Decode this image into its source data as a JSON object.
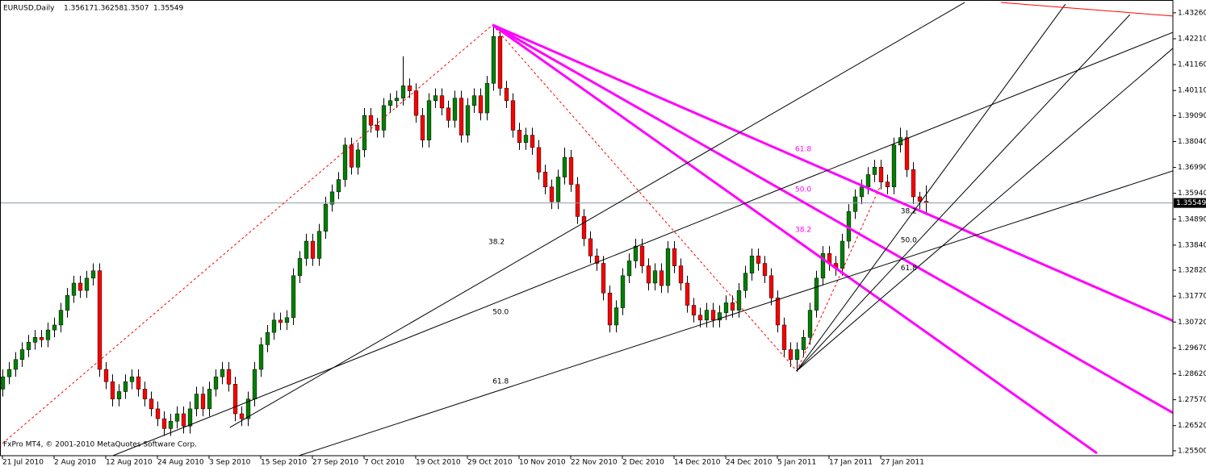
{
  "chart_data": {
    "type": "candlestick",
    "title": "EURUSD,Daily",
    "footer": "FxPro MT4, © 2001-2010 MetaQuotes Software Corp.",
    "up_color": "#008000",
    "down_color": "#ff0000",
    "wick_color": "#000000",
    "price_line_color": "#8c9aa6",
    "xlim": [
      -0.375,
      181.25
    ],
    "ylim": [
      1.253,
      1.4378
    ],
    "xticks": [
      {
        "value": 0,
        "label": "21 Jul 2010"
      },
      {
        "value": 8,
        "label": "2 Aug 2010"
      },
      {
        "value": 16,
        "label": "12 Aug 2010"
      },
      {
        "value": 24,
        "label": "24 Aug 2010"
      },
      {
        "value": 32,
        "label": "3 Sep 2010"
      },
      {
        "value": 40,
        "label": "15 Sep 2010"
      },
      {
        "value": 48,
        "label": "27 Sep 2010"
      },
      {
        "value": 56,
        "label": "7 Oct 2010"
      },
      {
        "value": 64,
        "label": "19 Oct 2010"
      },
      {
        "value": 72,
        "label": "29 Oct 2010"
      },
      {
        "value": 80,
        "label": "10 Nov 2010"
      },
      {
        "value": 88,
        "label": "22 Nov 2010"
      },
      {
        "value": 96,
        "label": "2 Dec 2010"
      },
      {
        "value": 104,
        "label": "14 Dec 2010"
      },
      {
        "value": 112,
        "label": "24 Dec 2010"
      },
      {
        "value": 120,
        "label": "5 Jan 2011"
      },
      {
        "value": 128,
        "label": "17 Jan 2011"
      },
      {
        "value": 136,
        "label": "27 Jan 2011"
      }
    ],
    "yticks": [
      {
        "value": 1.4326,
        "label": "1.43260"
      },
      {
        "value": 1.4221,
        "label": "1.42210"
      },
      {
        "value": 1.4116,
        "label": "1.41160"
      },
      {
        "value": 1.4011,
        "label": "1.40110"
      },
      {
        "value": 1.3909,
        "label": "1.39090"
      },
      {
        "value": 1.3804,
        "label": "1.38040"
      },
      {
        "value": 1.3699,
        "label": "1.36990"
      },
      {
        "value": 1.3594,
        "label": "1.35940"
      },
      {
        "value": 1.3489,
        "label": "1.34890"
      },
      {
        "value": 1.3384,
        "label": "1.33840"
      },
      {
        "value": 1.3282,
        "label": "1.32820"
      },
      {
        "value": 1.3177,
        "label": "1.31770"
      },
      {
        "value": 1.3072,
        "label": "1.30720"
      },
      {
        "value": 1.2967,
        "label": "1.29670"
      },
      {
        "value": 1.2862,
        "label": "1.28620"
      },
      {
        "value": 1.2757,
        "label": "1.27570"
      },
      {
        "value": 1.2652,
        "label": "1.26520"
      },
      {
        "value": 1.255,
        "label": "1.25500"
      }
    ],
    "ohlc": [
      [
        1.28,
        1.288,
        1.277,
        1.285
      ],
      [
        1.285,
        1.291,
        1.282,
        1.288
      ],
      [
        1.288,
        1.295,
        1.285,
        1.292
      ],
      [
        1.292,
        1.299,
        1.289,
        1.296
      ],
      [
        1.296,
        1.302,
        1.293,
        1.299
      ],
      [
        1.299,
        1.304,
        1.296,
        1.301
      ],
      [
        1.301,
        1.304,
        1.297,
        1.3
      ],
      [
        1.3,
        1.307,
        1.297,
        1.304
      ],
      [
        1.304,
        1.309,
        1.301,
        1.306
      ],
      [
        1.306,
        1.315,
        1.303,
        1.312
      ],
      [
        1.312,
        1.321,
        1.309,
        1.318
      ],
      [
        1.318,
        1.326,
        1.315,
        1.323
      ],
      [
        1.323,
        1.326,
        1.317,
        1.32
      ],
      [
        1.32,
        1.328,
        1.317,
        1.325
      ],
      [
        1.325,
        1.331,
        1.322,
        1.328
      ],
      [
        1.328,
        1.331,
        1.285,
        1.288
      ],
      [
        1.288,
        1.291,
        1.28,
        1.283
      ],
      [
        1.283,
        1.286,
        1.273,
        1.276
      ],
      [
        1.276,
        1.282,
        1.273,
        1.279
      ],
      [
        1.279,
        1.286,
        1.276,
        1.283
      ],
      [
        1.283,
        1.288,
        1.28,
        1.285
      ],
      [
        1.285,
        1.288,
        1.277,
        1.28
      ],
      [
        1.28,
        1.283,
        1.273,
        1.276
      ],
      [
        1.276,
        1.279,
        1.269,
        1.272
      ],
      [
        1.272,
        1.275,
        1.265,
        1.268
      ],
      [
        1.268,
        1.271,
        1.261,
        1.264
      ],
      [
        1.264,
        1.27,
        1.261,
        1.267
      ],
      [
        1.267,
        1.273,
        1.264,
        1.27
      ],
      [
        1.27,
        1.273,
        1.262,
        1.265
      ],
      [
        1.265,
        1.275,
        1.262,
        1.272
      ],
      [
        1.272,
        1.281,
        1.269,
        1.278
      ],
      [
        1.278,
        1.281,
        1.269,
        1.272
      ],
      [
        1.272,
        1.283,
        1.269,
        1.28
      ],
      [
        1.28,
        1.288,
        1.277,
        1.285
      ],
      [
        1.285,
        1.291,
        1.282,
        1.288
      ],
      [
        1.288,
        1.291,
        1.279,
        1.282
      ],
      [
        1.282,
        1.285,
        1.267,
        1.27
      ],
      [
        1.27,
        1.273,
        1.265,
        1.268
      ],
      [
        1.268,
        1.279,
        1.265,
        1.276
      ],
      [
        1.276,
        1.291,
        1.273,
        1.288
      ],
      [
        1.288,
        1.301,
        1.285,
        1.298
      ],
      [
        1.298,
        1.306,
        1.295,
        1.303
      ],
      [
        1.303,
        1.311,
        1.3,
        1.308
      ],
      [
        1.308,
        1.311,
        1.304,
        1.307
      ],
      [
        1.307,
        1.312,
        1.304,
        1.309
      ],
      [
        1.309,
        1.329,
        1.306,
        1.326
      ],
      [
        1.326,
        1.336,
        1.323,
        1.333
      ],
      [
        1.333,
        1.343,
        1.33,
        1.34
      ],
      [
        1.34,
        1.343,
        1.33,
        1.333
      ],
      [
        1.333,
        1.347,
        1.33,
        1.344
      ],
      [
        1.344,
        1.358,
        1.341,
        1.355
      ],
      [
        1.355,
        1.363,
        1.352,
        1.36
      ],
      [
        1.36,
        1.368,
        1.357,
        1.365
      ],
      [
        1.365,
        1.382,
        1.362,
        1.379
      ],
      [
        1.379,
        1.382,
        1.367,
        1.37
      ],
      [
        1.37,
        1.38,
        1.367,
        1.377
      ],
      [
        1.377,
        1.394,
        1.374,
        1.391
      ],
      [
        1.391,
        1.394,
        1.384,
        1.387
      ],
      [
        1.387,
        1.39,
        1.382,
        1.385
      ],
      [
        1.385,
        1.398,
        1.382,
        1.395
      ],
      [
        1.395,
        1.4,
        1.392,
        1.397
      ],
      [
        1.397,
        1.401,
        1.394,
        1.398
      ],
      [
        1.398,
        1.415,
        1.395,
        1.403
      ],
      [
        1.403,
        1.406,
        1.398,
        1.401
      ],
      [
        1.401,
        1.404,
        1.388,
        1.391
      ],
      [
        1.391,
        1.394,
        1.378,
        1.381
      ],
      [
        1.381,
        1.4,
        1.378,
        1.397
      ],
      [
        1.397,
        1.402,
        1.394,
        1.399
      ],
      [
        1.399,
        1.402,
        1.391,
        1.394
      ],
      [
        1.394,
        1.397,
        1.386,
        1.389
      ],
      [
        1.389,
        1.401,
        1.386,
        1.398
      ],
      [
        1.398,
        1.401,
        1.38,
        1.383
      ],
      [
        1.383,
        1.398,
        1.38,
        1.395
      ],
      [
        1.395,
        1.402,
        1.392,
        1.399
      ],
      [
        1.399,
        1.402,
        1.389,
        1.392
      ],
      [
        1.392,
        1.407,
        1.389,
        1.404
      ],
      [
        1.404,
        1.428,
        1.401,
        1.423
      ],
      [
        1.423,
        1.426,
        1.399,
        1.402
      ],
      [
        1.402,
        1.405,
        1.394,
        1.397
      ],
      [
        1.397,
        1.4,
        1.382,
        1.385
      ],
      [
        1.385,
        1.388,
        1.377,
        1.38
      ],
      [
        1.38,
        1.386,
        1.377,
        1.383
      ],
      [
        1.383,
        1.386,
        1.375,
        1.378
      ],
      [
        1.378,
        1.381,
        1.365,
        1.368
      ],
      [
        1.368,
        1.371,
        1.359,
        1.362
      ],
      [
        1.362,
        1.365,
        1.353,
        1.356
      ],
      [
        1.356,
        1.369,
        1.353,
        1.366
      ],
      [
        1.366,
        1.378,
        1.363,
        1.374
      ],
      [
        1.374,
        1.377,
        1.36,
        1.363
      ],
      [
        1.363,
        1.366,
        1.347,
        1.35
      ],
      [
        1.35,
        1.353,
        1.338,
        1.341
      ],
      [
        1.341,
        1.344,
        1.331,
        1.334
      ],
      [
        1.334,
        1.337,
        1.328,
        1.331
      ],
      [
        1.331,
        1.334,
        1.316,
        1.319
      ],
      [
        1.319,
        1.322,
        1.303,
        1.306
      ],
      [
        1.306,
        1.316,
        1.303,
        1.313
      ],
      [
        1.313,
        1.329,
        1.31,
        1.326
      ],
      [
        1.326,
        1.335,
        1.323,
        1.332
      ],
      [
        1.332,
        1.341,
        1.329,
        1.338
      ],
      [
        1.338,
        1.341,
        1.327,
        1.33
      ],
      [
        1.33,
        1.333,
        1.32,
        1.323
      ],
      [
        1.323,
        1.331,
        1.32,
        1.328
      ],
      [
        1.328,
        1.331,
        1.319,
        1.322
      ],
      [
        1.322,
        1.34,
        1.319,
        1.337
      ],
      [
        1.337,
        1.34,
        1.327,
        1.33
      ],
      [
        1.33,
        1.333,
        1.32,
        1.323
      ],
      [
        1.323,
        1.326,
        1.311,
        1.314
      ],
      [
        1.314,
        1.317,
        1.307,
        1.31
      ],
      [
        1.31,
        1.313,
        1.305,
        1.308
      ],
      [
        1.308,
        1.315,
        1.305,
        1.312
      ],
      [
        1.312,
        1.315,
        1.305,
        1.308
      ],
      [
        1.308,
        1.314,
        1.305,
        1.311
      ],
      [
        1.311,
        1.318,
        1.308,
        1.315
      ],
      [
        1.315,
        1.318,
        1.309,
        1.312
      ],
      [
        1.312,
        1.323,
        1.309,
        1.32
      ],
      [
        1.32,
        1.33,
        1.317,
        1.327
      ],
      [
        1.327,
        1.337,
        1.324,
        1.334
      ],
      [
        1.334,
        1.337,
        1.328,
        1.331
      ],
      [
        1.331,
        1.334,
        1.323,
        1.326
      ],
      [
        1.326,
        1.329,
        1.314,
        1.317
      ],
      [
        1.317,
        1.32,
        1.303,
        1.306
      ],
      [
        1.306,
        1.309,
        1.293,
        1.296
      ],
      [
        1.296,
        1.299,
        1.289,
        1.292
      ],
      [
        1.292,
        1.299,
        1.287,
        1.296
      ],
      [
        1.296,
        1.304,
        1.293,
        1.301
      ],
      [
        1.301,
        1.315,
        1.298,
        1.312
      ],
      [
        1.312,
        1.328,
        1.309,
        1.325
      ],
      [
        1.325,
        1.338,
        1.322,
        1.335
      ],
      [
        1.335,
        1.338,
        1.328,
        1.331
      ],
      [
        1.331,
        1.334,
        1.326,
        1.329
      ],
      [
        1.329,
        1.343,
        1.326,
        1.34
      ],
      [
        1.34,
        1.355,
        1.337,
        1.352
      ],
      [
        1.352,
        1.361,
        1.349,
        1.358
      ],
      [
        1.358,
        1.365,
        1.355,
        1.362
      ],
      [
        1.362,
        1.37,
        1.359,
        1.367
      ],
      [
        1.367,
        1.373,
        1.364,
        1.37
      ],
      [
        1.37,
        1.373,
        1.361,
        1.364
      ],
      [
        1.364,
        1.367,
        1.359,
        1.362
      ],
      [
        1.362,
        1.382,
        1.359,
        1.379
      ],
      [
        1.379,
        1.386,
        1.376,
        1.382
      ],
      [
        1.382,
        1.385,
        1.366,
        1.369
      ],
      [
        1.369,
        1.372,
        1.355,
        1.358
      ],
      [
        1.358,
        1.36,
        1.353,
        1.3562
      ],
      [
        1.35617,
        1.36258,
        1.3507,
        1.35549
      ]
    ],
    "drawings": [
      {
        "color": "#ff0000",
        "style": "dash",
        "points": [
          [
            0,
            1.258
          ],
          [
            75.9,
            1.4277
          ]
        ]
      },
      {
        "color": "#ff0000",
        "style": "dash",
        "points": [
          [
            75.9,
            1.4277
          ],
          [
            123,
            1.2874
          ]
        ]
      },
      {
        "color": "#ff0000",
        "style": "dash",
        "points": [
          [
            123,
            1.2874
          ],
          [
            136,
            1.3626
          ]
        ]
      },
      {
        "color": "#ff00ff",
        "style": "thick",
        "points": [
          [
            75.9,
            1.4277
          ],
          [
            181.25,
            1.3077
          ]
        ]
      },
      {
        "color": "#ff00ff",
        "style": "thick",
        "points": [
          [
            75.9,
            1.4277
          ],
          [
            181.25,
            1.2704
          ]
        ]
      },
      {
        "color": "#ff00ff",
        "style": "thick",
        "points": [
          [
            75.9,
            1.4277
          ],
          [
            169.5,
            1.254
          ]
        ]
      },
      {
        "color": "#000000",
        "style": "solid",
        "points": [
          [
            35.25,
            1.2645
          ],
          [
            149,
            1.4368
          ]
        ]
      },
      {
        "color": "#000000",
        "style": "solid",
        "points": [
          [
            17.1,
            1.253
          ],
          [
            181.25,
            1.4247
          ]
        ]
      },
      {
        "color": "#000000",
        "style": "solid",
        "points": [
          [
            45.9,
            1.253
          ],
          [
            181.25,
            1.3685
          ]
        ]
      },
      {
        "color": "#000000",
        "style": "solid",
        "points": [
          [
            123,
            1.2874
          ],
          [
            164.6,
            1.4361
          ]
        ]
      },
      {
        "color": "#000000",
        "style": "solid",
        "points": [
          [
            123,
            1.2874
          ],
          [
            174.6,
            1.4319
          ]
        ]
      },
      {
        "color": "#000000",
        "style": "solid",
        "points": [
          [
            123,
            1.2874
          ],
          [
            181.25,
            1.4182
          ]
        ]
      },
      {
        "color": "#ff0000",
        "style": "solid",
        "points": [
          [
            154.6,
            1.4368
          ],
          [
            181.25,
            1.4313
          ]
        ]
      }
    ],
    "labels": [
      {
        "text": "61.8",
        "color": "#ff00ff",
        "at": [
          122.75,
          1.3773
        ]
      },
      {
        "text": "50.0",
        "color": "#ff00ff",
        "at": [
          122.75,
          1.3609
        ]
      },
      {
        "text": "38.2",
        "color": "#ff00ff",
        "at": [
          122.75,
          1.3446
        ]
      },
      {
        "text": "38.2",
        "color": "#000000",
        "at": [
          75.25,
          1.3397
        ]
      },
      {
        "text": "50.0",
        "color": "#000000",
        "at": [
          75.9,
          1.3113
        ]
      },
      {
        "text": "61.8",
        "color": "#000000",
        "at": [
          75.9,
          1.2831
        ]
      },
      {
        "text": "38.2",
        "color": "#000000",
        "at": [
          139.1,
          1.3521
        ]
      },
      {
        "text": "50.0",
        "color": "#000000",
        "at": [
          139.1,
          1.3404
        ]
      },
      {
        "text": "61.8",
        "color": "#000000",
        "at": [
          139.1,
          1.329
        ]
      }
    ]
  }
}
